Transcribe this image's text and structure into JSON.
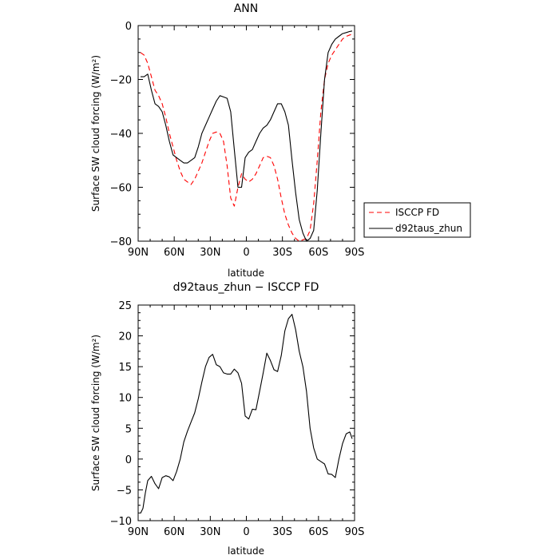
{
  "chart_data": [
    {
      "type": "line",
      "title": "ANN",
      "xlabel": "latitude",
      "ylabel": "Surface SW cloud forcing (W/m²)",
      "xlim": [
        90,
        -90
      ],
      "ylim": [
        -80,
        0
      ],
      "xticks": [
        90,
        60,
        30,
        0,
        -30,
        -60,
        -90
      ],
      "xtick_labels": [
        "90N",
        "60N",
        "30N",
        "0",
        "30S",
        "60S",
        "90S"
      ],
      "yticks": [
        0,
        -20,
        -40,
        -60,
        -80
      ],
      "ytick_labels": [
        "0",
        "−20",
        "−40",
        "−60",
        "−80"
      ],
      "legend": {
        "placement": "right",
        "entries": [
          "ISCCP FD",
          "d92taus_zhun"
        ]
      },
      "series": [
        {
          "name": "ISCCP FD",
          "color": "#ff0000",
          "dash": true,
          "x": [
            88,
            85,
            82,
            79,
            76,
            73,
            70,
            67,
            64,
            61,
            58,
            55,
            52,
            49,
            46,
            43,
            40,
            37,
            34,
            31,
            28,
            25,
            22,
            19,
            16,
            13,
            10,
            7,
            4,
            1,
            -2,
            -5,
            -8,
            -11,
            -14,
            -17,
            -20,
            -23,
            -26,
            -29,
            -32,
            -35,
            -38,
            -41,
            -44,
            -47,
            -50,
            -53,
            -56,
            -59,
            -62,
            -65,
            -68,
            -71,
            -74,
            -77,
            -80,
            -83,
            -86,
            -88
          ],
          "y": [
            -10,
            -11,
            -14,
            -19,
            -24,
            -26,
            -29,
            -34,
            -40,
            -45,
            -50,
            -54,
            -57,
            -58,
            -59,
            -57,
            -54,
            -51,
            -47,
            -43,
            -40,
            -39.5,
            -40,
            -43,
            -52,
            -64,
            -67,
            -60,
            -55,
            -57,
            -58,
            -57,
            -55,
            -52,
            -49,
            -48.5,
            -49,
            -52,
            -57,
            -64,
            -70,
            -74,
            -77,
            -79,
            -80,
            -79.5,
            -79,
            -76,
            -66,
            -50,
            -32,
            -20,
            -14,
            -11,
            -9,
            -7,
            -5,
            -4,
            -3.5,
            -3.2
          ]
        },
        {
          "name": "d92taus_zhun",
          "color": "#000000",
          "dash": false,
          "x": [
            88,
            85,
            82,
            79,
            76,
            73,
            70,
            67,
            64,
            61,
            58,
            55,
            52,
            49,
            46,
            43,
            40,
            37,
            34,
            31,
            28,
            25,
            22,
            19,
            16,
            13,
            10,
            7,
            4,
            1,
            -2,
            -5,
            -8,
            -11,
            -14,
            -17,
            -20,
            -23,
            -26,
            -29,
            -32,
            -35,
            -38,
            -41,
            -44,
            -47,
            -50,
            -53,
            -56,
            -59,
            -62,
            -65,
            -68,
            -71,
            -74,
            -77,
            -80,
            -83,
            -86,
            -88
          ],
          "y": [
            -19,
            -19,
            -18,
            -24,
            -29,
            -30,
            -32,
            -37,
            -43,
            -48,
            -49,
            -50,
            -51,
            -51,
            -50,
            -49,
            -45,
            -40,
            -37,
            -34,
            -31,
            -28,
            -26,
            -26.5,
            -27,
            -32,
            -46,
            -60,
            -60,
            -49,
            -47,
            -46,
            -43,
            -40,
            -38,
            -37,
            -35,
            -32,
            -29,
            -29,
            -32,
            -37,
            -50,
            -62,
            -72,
            -77,
            -80,
            -79,
            -76,
            -61,
            -40,
            -20,
            -10,
            -7,
            -5,
            -4,
            -3,
            -2.6,
            -2.2,
            -2
          ]
        }
      ]
    },
    {
      "type": "line",
      "title": "d92taus_zhun − ISCCP FD",
      "xlabel": "latitude",
      "ylabel": "Surface SW cloud forcing (W/m²)",
      "xlim": [
        90,
        -90
      ],
      "ylim": [
        -10,
        25
      ],
      "xticks": [
        90,
        60,
        30,
        0,
        -30,
        -60,
        -90
      ],
      "xtick_labels": [
        "90N",
        "60N",
        "30N",
        "0",
        "30S",
        "60S",
        "90S"
      ],
      "yticks": [
        25,
        20,
        15,
        10,
        5,
        0,
        -5,
        -10
      ],
      "ytick_labels": [
        "25",
        "20",
        "15",
        "10",
        "5",
        "0",
        "−5",
        "−10"
      ],
      "series": [
        {
          "color": "#000000",
          "dash": false,
          "x": [
            88,
            86,
            84,
            82,
            79,
            76,
            73,
            70,
            67,
            64,
            61,
            58,
            55,
            52,
            49,
            46,
            43,
            40,
            37,
            34,
            31,
            28,
            25,
            22,
            19,
            16,
            13,
            10,
            7,
            4,
            1,
            -2,
            -5,
            -8,
            -11,
            -14,
            -17,
            -20,
            -23,
            -26,
            -29,
            -32,
            -35,
            -38,
            -41,
            -44,
            -47,
            -50,
            -53,
            -56,
            -59,
            -62,
            -65,
            -68,
            -71,
            -74,
            -77,
            -80,
            -83,
            -86,
            -88
          ],
          "y": [
            -8.8,
            -8,
            -5.5,
            -3.5,
            -2.8,
            -4,
            -4.8,
            -3,
            -2.7,
            -2.9,
            -3.5,
            -2,
            0,
            2.8,
            4.5,
            6,
            7.5,
            9.8,
            12.5,
            15,
            16.5,
            17,
            15.3,
            15,
            14,
            13.8,
            13.8,
            14.6,
            14,
            12.3,
            7,
            6.5,
            8.1,
            8,
            11,
            14,
            17.2,
            16,
            14.5,
            14.2,
            16.8,
            20.8,
            22.8,
            23.5,
            21,
            17.5,
            15,
            11,
            5,
            1.8,
            0,
            -0.4,
            -0.8,
            -2.4,
            -2.5,
            -3,
            0,
            2.5,
            4.1,
            4.4,
            3.3
          ]
        }
      ]
    }
  ]
}
